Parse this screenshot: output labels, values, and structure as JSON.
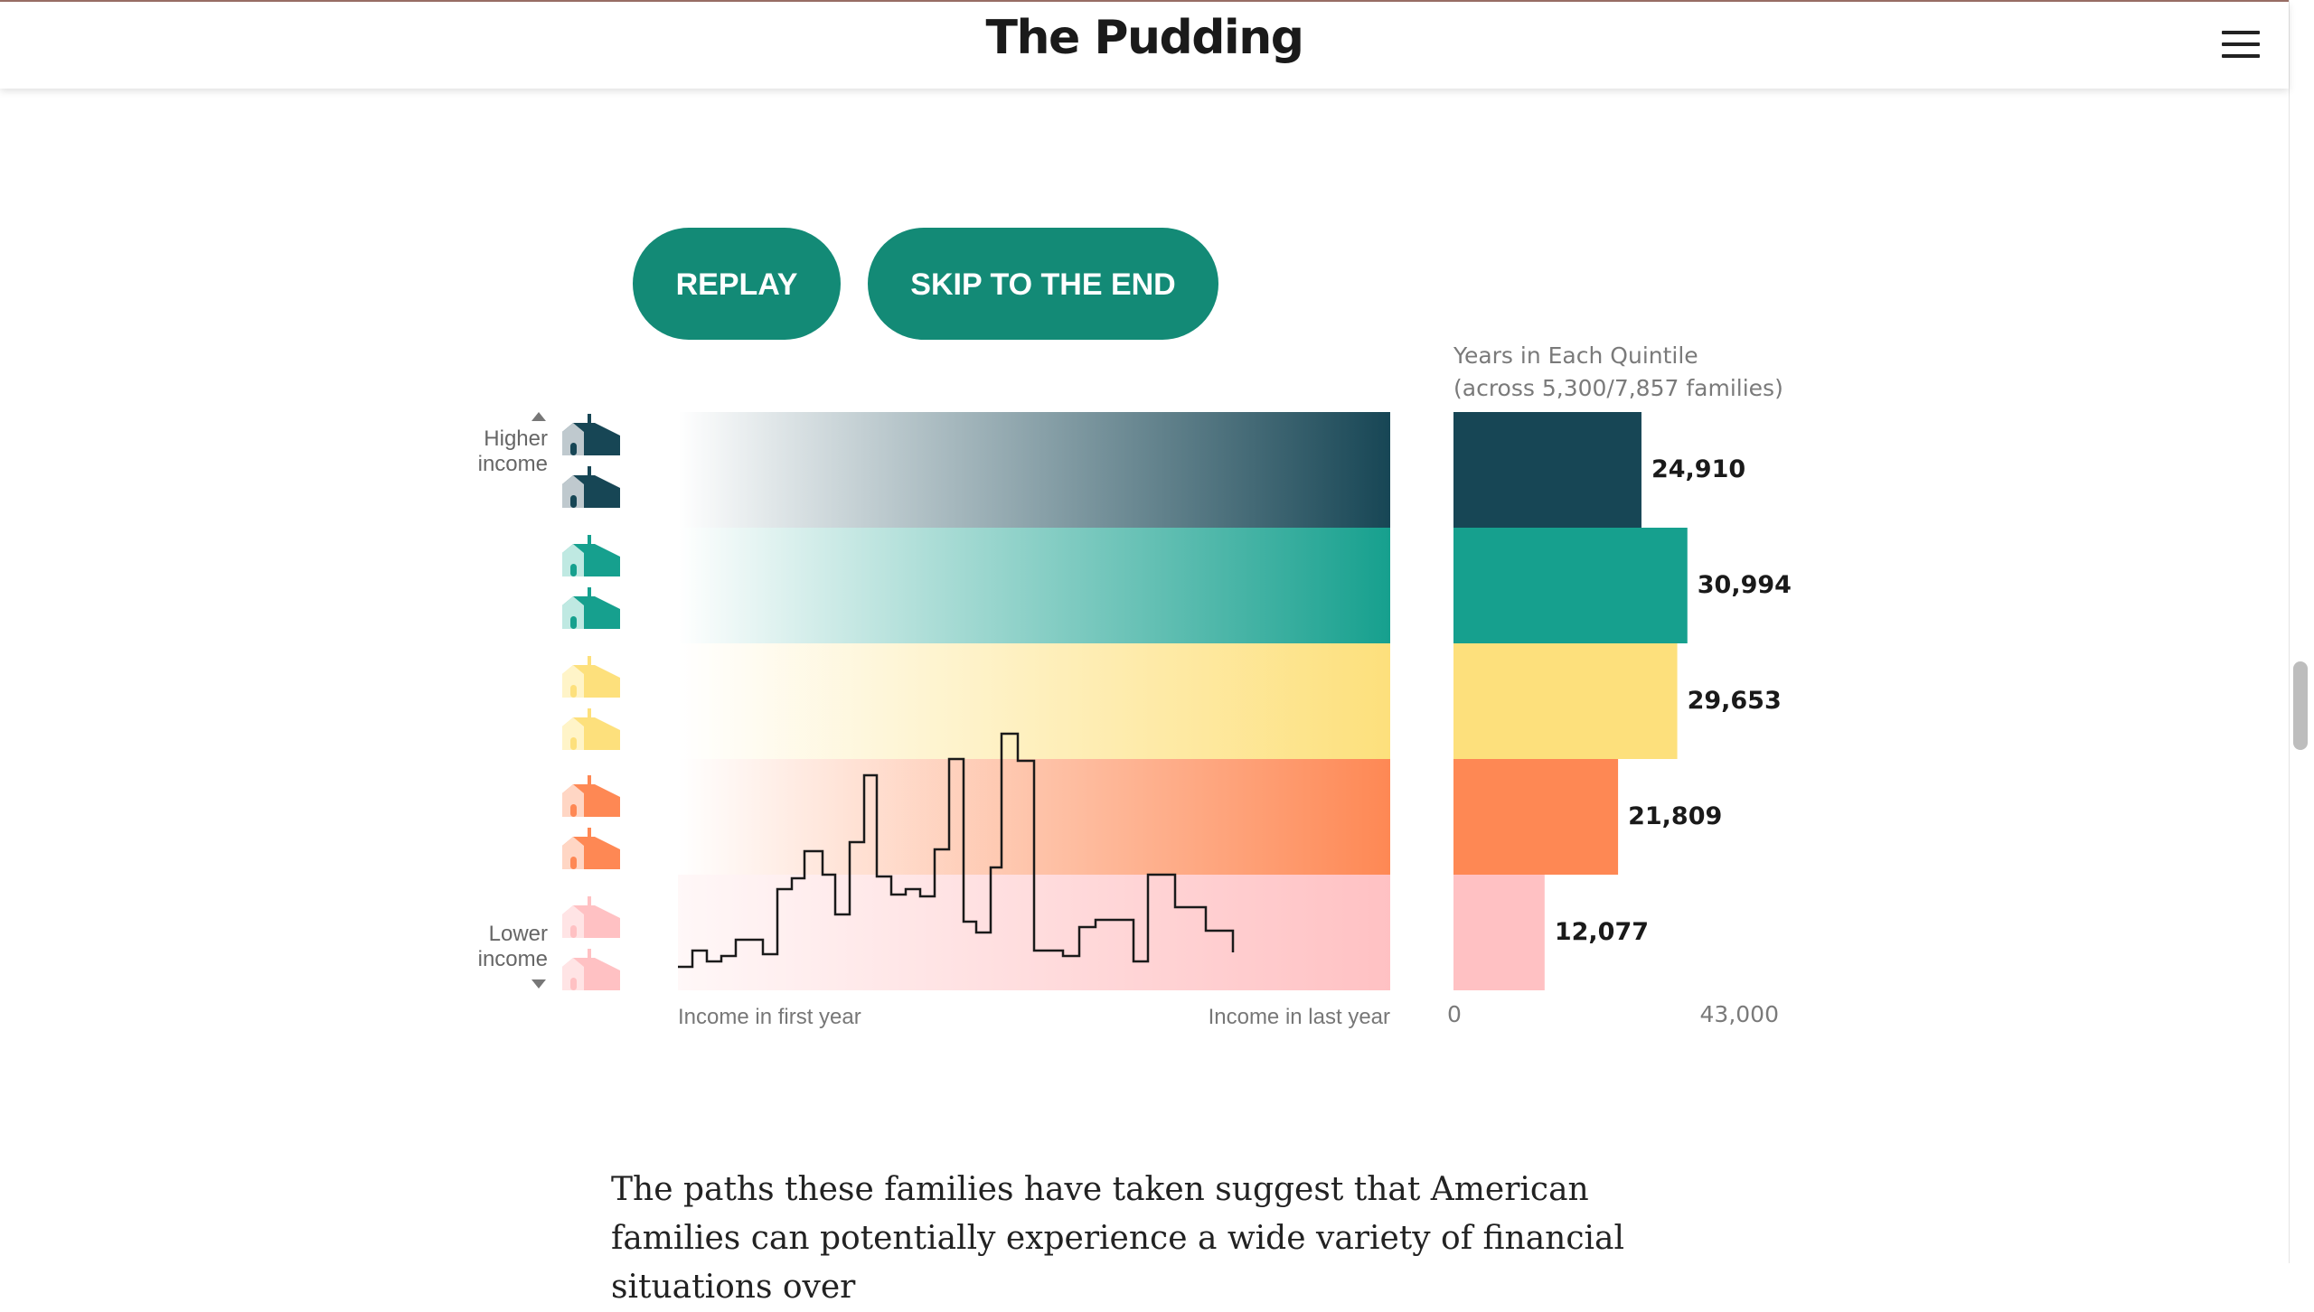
{
  "header": {
    "logo": "The Pudding",
    "menu_icon": "hamburger-menu-icon"
  },
  "controls": {
    "replay_label": "REPLAY",
    "skip_label": "SKIP TO THE END"
  },
  "left_axis": {
    "top_label": "Higher income",
    "bottom_label": "Lower income"
  },
  "flow": {
    "start_label": "Income in first year",
    "end_label": "Income in last year"
  },
  "colors": {
    "accent": "#138a76",
    "quintiles": [
      "#174655",
      "#16a08e",
      "#fde07c",
      "#fe8854",
      "#ffc1c3"
    ]
  },
  "chart_data": {
    "type": "bar",
    "title": "Years in Each Quintile",
    "subtitle": "(across 5,300/7,857 families)",
    "orientation": "horizontal",
    "categories": [
      "",
      "",
      "",
      "",
      ""
    ],
    "values": [
      24910,
      30994,
      29653,
      21809,
      12077
    ],
    "value_labels": [
      "24,910",
      "30,994",
      "29,653",
      "21,809",
      "12,077"
    ],
    "xlim": [
      0,
      43000
    ],
    "tick_labels": [
      "0",
      "43,000"
    ],
    "grid": false
  },
  "body": {
    "paragraph": "The paths these families have taken suggest that American families can potentially experience a wide variety of financial situations over"
  }
}
